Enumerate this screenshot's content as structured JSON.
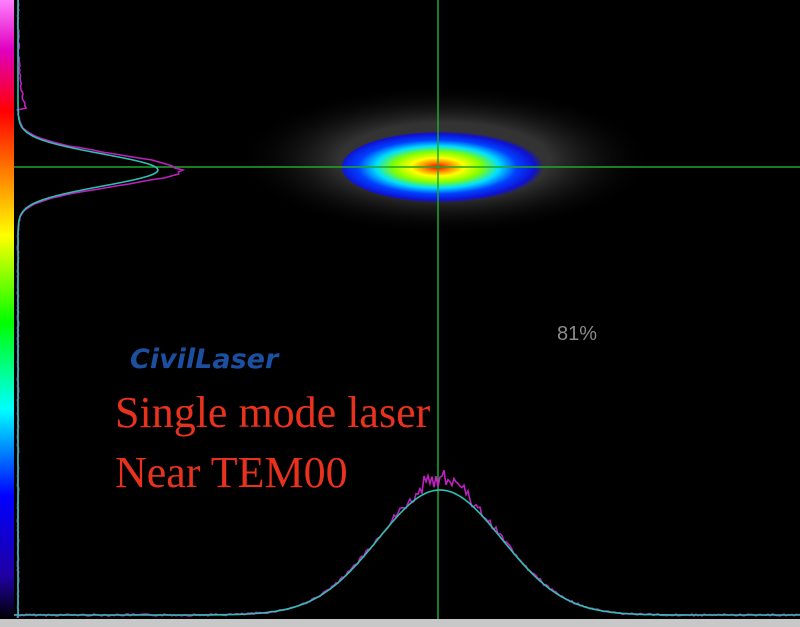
{
  "screen": {
    "readout": "81%",
    "brand": "CivilLaser",
    "caption_lines": [
      "Single mode laser",
      "Near TEM00"
    ]
  }
}
